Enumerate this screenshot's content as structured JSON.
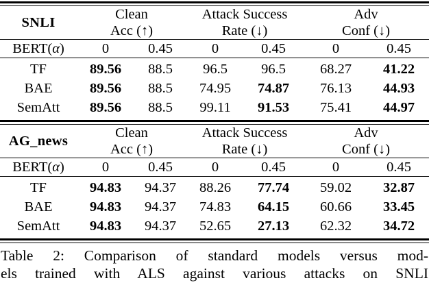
{
  "page": {
    "background": "#ffffff",
    "text_color": "#000000"
  },
  "caption": {
    "line1": "Table 2: Comparison of standard models versus mod-",
    "line2": "els trained with ALS against various attacks on SNLI"
  },
  "tables": [
    {
      "dataset": "SNLI",
      "groups": [
        {
          "title": "Clean",
          "subtitle": "Acc (↑)"
        },
        {
          "title": "Attack Success",
          "subtitle": "Rate (↓)"
        },
        {
          "title": "Adv",
          "subtitle": "Conf (↓)"
        }
      ],
      "alpha_row": {
        "label_pre": "BERT(",
        "label_alpha": "α",
        "label_post": ")",
        "values": [
          "0",
          "0.45",
          "0",
          "0.45",
          "0",
          "0.45"
        ]
      },
      "rows": [
        {
          "label": "TF",
          "cells": [
            {
              "text": "89.56",
              "bold": true
            },
            {
              "text": "88.5",
              "bold": false
            },
            {
              "text": "96.5",
              "bold": false
            },
            {
              "text": "96.5",
              "bold": false
            },
            {
              "text": "68.27",
              "bold": false
            },
            {
              "text": "41.22",
              "bold": true
            }
          ]
        },
        {
          "label": "BAE",
          "cells": [
            {
              "text": "89.56",
              "bold": true
            },
            {
              "text": "88.5",
              "bold": false
            },
            {
              "text": "74.95",
              "bold": false
            },
            {
              "text": "74.87",
              "bold": true
            },
            {
              "text": "76.13",
              "bold": false
            },
            {
              "text": "44.93",
              "bold": true
            }
          ]
        },
        {
          "label": "SemAtt",
          "cells": [
            {
              "text": "89.56",
              "bold": true
            },
            {
              "text": "88.5",
              "bold": false
            },
            {
              "text": "99.11",
              "bold": false
            },
            {
              "text": "91.53",
              "bold": true
            },
            {
              "text": "75.41",
              "bold": false
            },
            {
              "text": "44.97",
              "bold": true
            }
          ]
        }
      ]
    },
    {
      "dataset": "AG_news",
      "groups": [
        {
          "title": "Clean",
          "subtitle": "Acc (↑)"
        },
        {
          "title": "Attack Success",
          "subtitle": "Rate (↓)"
        },
        {
          "title": "Adv",
          "subtitle": "Conf (↓)"
        }
      ],
      "alpha_row": {
        "label_pre": "BERT(",
        "label_alpha": "α",
        "label_post": ")",
        "values": [
          "0",
          "0.45",
          "0",
          "0.45",
          "0",
          "0.45"
        ]
      },
      "rows": [
        {
          "label": "TF",
          "cells": [
            {
              "text": "94.83",
              "bold": true
            },
            {
              "text": "94.37",
              "bold": false
            },
            {
              "text": "88.26",
              "bold": false
            },
            {
              "text": "77.74",
              "bold": true
            },
            {
              "text": "59.02",
              "bold": false
            },
            {
              "text": "32.87",
              "bold": true
            }
          ]
        },
        {
          "label": "BAE",
          "cells": [
            {
              "text": "94.83",
              "bold": true
            },
            {
              "text": "94.37",
              "bold": false
            },
            {
              "text": "74.83",
              "bold": false
            },
            {
              "text": "64.15",
              "bold": true
            },
            {
              "text": "60.66",
              "bold": false
            },
            {
              "text": "33.45",
              "bold": true
            }
          ]
        },
        {
          "label": "SemAtt",
          "cells": [
            {
              "text": "94.83",
              "bold": true
            },
            {
              "text": "94.37",
              "bold": false
            },
            {
              "text": "52.65",
              "bold": false
            },
            {
              "text": "27.13",
              "bold": true
            },
            {
              "text": "62.32",
              "bold": false
            },
            {
              "text": "34.72",
              "bold": true
            }
          ]
        }
      ]
    }
  ]
}
